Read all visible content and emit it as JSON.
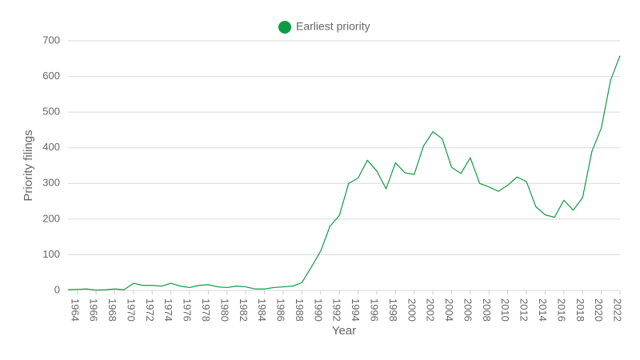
{
  "chart_data": {
    "type": "line",
    "x_label": "Year",
    "y_label": "Priority filings",
    "x": [
      1963,
      1964,
      1965,
      1966,
      1967,
      1968,
      1969,
      1970,
      1971,
      1972,
      1973,
      1974,
      1975,
      1976,
      1977,
      1978,
      1979,
      1980,
      1981,
      1982,
      1983,
      1984,
      1985,
      1986,
      1987,
      1988,
      1989,
      1990,
      1991,
      1992,
      1993,
      1994,
      1995,
      1996,
      1997,
      1998,
      1999,
      2000,
      2001,
      2002,
      2003,
      2004,
      2005,
      2006,
      2007,
      2008,
      2009,
      2010,
      2011,
      2012,
      2013,
      2014,
      2015,
      2016,
      2017,
      2018,
      2019,
      2020,
      2021,
      2022
    ],
    "series": [
      {
        "name": "Earliest priority",
        "color": "#0b9c41",
        "values": [
          2,
          3,
          4,
          1,
          2,
          4,
          2,
          20,
          14,
          14,
          12,
          20,
          12,
          8,
          14,
          16,
          10,
          8,
          12,
          10,
          4,
          4,
          8,
          10,
          12,
          22,
          65,
          110,
          180,
          210,
          300,
          315,
          365,
          335,
          285,
          358,
          330,
          325,
          405,
          445,
          425,
          345,
          328,
          372,
          300,
          290,
          278,
          295,
          318,
          305,
          235,
          212,
          205,
          253,
          225,
          260,
          390,
          455,
          590,
          658
        ]
      }
    ],
    "xlim": [
      1963,
      2022
    ],
    "xticks": [
      1964,
      1966,
      1968,
      1970,
      1972,
      1974,
      1976,
      1978,
      1980,
      1982,
      1984,
      1986,
      1988,
      1990,
      1992,
      1994,
      1996,
      1998,
      2000,
      2002,
      2004,
      2006,
      2008,
      2010,
      2012,
      2014,
      2016,
      2018,
      2020,
      2022
    ],
    "ylim": [
      0,
      700
    ],
    "yticks": [
      0,
      100,
      200,
      300,
      400,
      500,
      600,
      700
    ],
    "grid": true,
    "legend": "top"
  }
}
